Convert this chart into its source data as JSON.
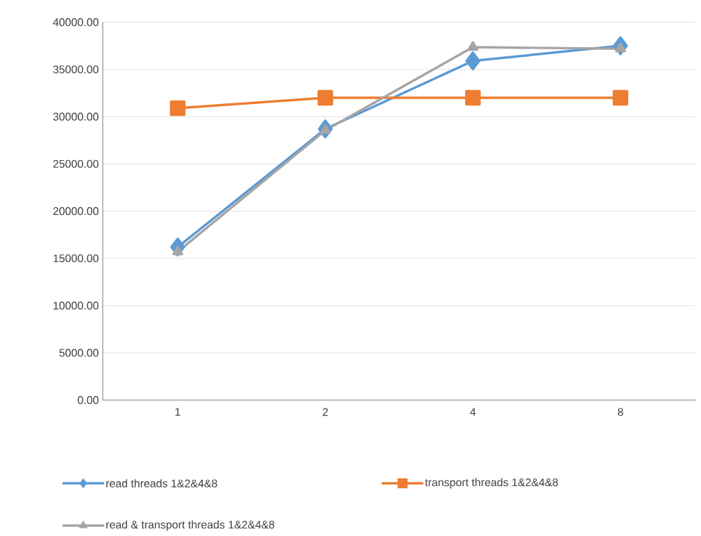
{
  "chart_data": {
    "type": "line",
    "categories": [
      "1",
      "2",
      "4",
      "8"
    ],
    "series": [
      {
        "name": "read threads 1&2&4&8",
        "color": "#5b9bd5",
        "marker": "diamond",
        "values": [
          16200,
          28700,
          35900,
          37500
        ]
      },
      {
        "name": "transport threads 1&2&4&8",
        "color": "#ed7d31",
        "marker": "square",
        "values": [
          30900,
          32000,
          32000,
          32000
        ]
      },
      {
        "name": "read & transport threads 1&2&4&8",
        "color": "#a5a5a5",
        "marker": "triangle",
        "values": [
          15700,
          28550,
          37350,
          37200
        ]
      }
    ],
    "ylim": [
      0,
      40000
    ],
    "yticks": [
      {
        "value": 0,
        "label": "0.00"
      },
      {
        "value": 5000,
        "label": "5000.00"
      },
      {
        "value": 10000,
        "label": "10000.00"
      },
      {
        "value": 15000,
        "label": "15000.00"
      },
      {
        "value": 20000,
        "label": "20000.00"
      },
      {
        "value": 25000,
        "label": "25000.00"
      },
      {
        "value": 30000,
        "label": "30000.00"
      },
      {
        "value": 35000,
        "label": "35000.00"
      },
      {
        "value": 40000,
        "label": "40000.00"
      }
    ],
    "grid": "y",
    "legend": "bottom",
    "line_style": "solid"
  }
}
